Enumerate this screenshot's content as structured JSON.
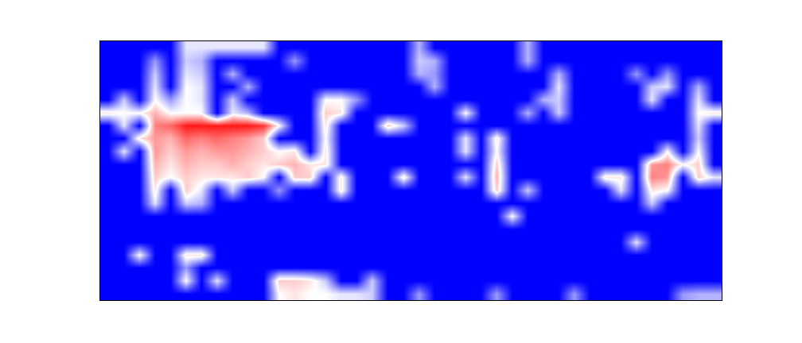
{
  "chart_data": {
    "type": "heatmap",
    "tick_labels": false,
    "colors": [
      "#0000ff",
      "#ffffff",
      "#ff0000"
    ],
    "color_range": [
      0,
      1
    ],
    "cells": [
      [
        0,
        0,
        0,
        0,
        0,
        0.45,
        0.45,
        0.45,
        0.45,
        0.45,
        0.45,
        0,
        0,
        0,
        0,
        0,
        0,
        0,
        0,
        0,
        0.35,
        0,
        0,
        0,
        0,
        0,
        0,
        0.35,
        0,
        0,
        0,
        0,
        0,
        0,
        0,
        0,
        0,
        0,
        0,
        0
      ],
      [
        0,
        0,
        0,
        0.3,
        0,
        0.4,
        0.35,
        0,
        0,
        0,
        0,
        0,
        0.3,
        0,
        0,
        0,
        0,
        0,
        0,
        0,
        0.4,
        0.35,
        0,
        0,
        0,
        0,
        0,
        0.35,
        0,
        0,
        0,
        0,
        0,
        0,
        0,
        0,
        0,
        0,
        0,
        0
      ],
      [
        0,
        0,
        0,
        0.4,
        0,
        0.45,
        0.4,
        0,
        0.35,
        0,
        0,
        0,
        0,
        0,
        0,
        0,
        0,
        0,
        0,
        0,
        0.35,
        0.3,
        0,
        0,
        0,
        0,
        0,
        0,
        0,
        0.35,
        0,
        0,
        0,
        0,
        0.3,
        0,
        0.3,
        0,
        0,
        0
      ],
      [
        0,
        0,
        0,
        0.45,
        0,
        0.5,
        0.45,
        0,
        0,
        0.35,
        0,
        0,
        0,
        0,
        0,
        0,
        0,
        0,
        0,
        0,
        0,
        0.35,
        0,
        0,
        0,
        0,
        0,
        0,
        0,
        0.45,
        0,
        0,
        0,
        0,
        0,
        0.4,
        0.45,
        0,
        0.35,
        0
      ],
      [
        0,
        0.4,
        0,
        0.5,
        0.3,
        0.5,
        0.45,
        0,
        0.4,
        0,
        0,
        0,
        0,
        0,
        0.5,
        0.5,
        0.3,
        0,
        0,
        0,
        0,
        0,
        0,
        0,
        0,
        0,
        0,
        0,
        0.35,
        0.4,
        0,
        0,
        0,
        0,
        0,
        0.45,
        0,
        0,
        0.45,
        0
      ],
      [
        0.55,
        0.5,
        0.5,
        0.65,
        0.5,
        0.5,
        0.5,
        0,
        0.45,
        0.35,
        0,
        0,
        0,
        0,
        0.6,
        0.55,
        0,
        0,
        0,
        0,
        0,
        0,
        0,
        0.5,
        0,
        0,
        0,
        0.35,
        0,
        0.4,
        0,
        0,
        0,
        0,
        0,
        0,
        0,
        0,
        0.5,
        0.55
      ],
      [
        0,
        0.45,
        0,
        0.75,
        0.8,
        0.95,
        0.95,
        0.95,
        0.95,
        0.95,
        0.9,
        0.5,
        0,
        0,
        0.55,
        0,
        0,
        0,
        0.6,
        0.4,
        0,
        0,
        0,
        0,
        0,
        0,
        0,
        0,
        0,
        0,
        0,
        0,
        0,
        0,
        0,
        0,
        0,
        0,
        0.45,
        0
      ],
      [
        0,
        0,
        0.55,
        0.7,
        0.65,
        0.8,
        0.75,
        0.8,
        0.75,
        0.7,
        0.6,
        0,
        0,
        0,
        0.5,
        0,
        0,
        0,
        0,
        0,
        0,
        0,
        0,
        0.45,
        0,
        0.55,
        0,
        0,
        0,
        0,
        0,
        0,
        0,
        0,
        0,
        0,
        0,
        0,
        0.4,
        0
      ],
      [
        0,
        0.45,
        0,
        0.7,
        0.6,
        0.7,
        0.65,
        0.7,
        0.7,
        0.65,
        0.6,
        0.5,
        0.55,
        0,
        0.55,
        0,
        0,
        0,
        0,
        0,
        0,
        0,
        0,
        0.45,
        0,
        0.5,
        0,
        0,
        0,
        0,
        0,
        0,
        0,
        0,
        0,
        0,
        0.5,
        0,
        0.5,
        0
      ],
      [
        0,
        0,
        0,
        0.65,
        0.55,
        0.65,
        0.6,
        0.6,
        0.65,
        0.6,
        0.55,
        0.6,
        0.65,
        0.55,
        0.55,
        0,
        0,
        0,
        0,
        0,
        0,
        0,
        0,
        0,
        0,
        0.6,
        0,
        0,
        0,
        0,
        0,
        0,
        0,
        0,
        0,
        0.7,
        0.75,
        0.5,
        0.6,
        0
      ],
      [
        0,
        0,
        0,
        0.6,
        0.5,
        0.6,
        0.55,
        0.55,
        0.55,
        0.6,
        0.5,
        0,
        0.6,
        0.6,
        0,
        0.55,
        0,
        0,
        0,
        0.55,
        0,
        0,
        0,
        0.45,
        0,
        0.65,
        0,
        0,
        0,
        0,
        0,
        0,
        0.55,
        0.55,
        0,
        0.75,
        0.7,
        0,
        0.6,
        0.45
      ],
      [
        0,
        0,
        0,
        0.55,
        0,
        0.6,
        0.45,
        0,
        0.4,
        0,
        0,
        0.3,
        0,
        0,
        0,
        0.55,
        0,
        0,
        0,
        0,
        0,
        0,
        0,
        0,
        0,
        0.6,
        0,
        0.4,
        0,
        0,
        0,
        0,
        0,
        0.45,
        0,
        0.55,
        0.5,
        0,
        0,
        0
      ],
      [
        0,
        0,
        0,
        0.45,
        0,
        0.4,
        0.35,
        0,
        0,
        0,
        0,
        0,
        0,
        0,
        0,
        0,
        0,
        0,
        0,
        0,
        0,
        0,
        0,
        0,
        0,
        0,
        0,
        0,
        0,
        0,
        0,
        0,
        0,
        0,
        0,
        0.4,
        0,
        0,
        0,
        0
      ],
      [
        0,
        0,
        0,
        0,
        0,
        0,
        0,
        0,
        0,
        0,
        0,
        0,
        0,
        0,
        0,
        0,
        0,
        0,
        0,
        0,
        0,
        0,
        0,
        0,
        0,
        0,
        0.5,
        0,
        0,
        0,
        0,
        0,
        0,
        0,
        0,
        0,
        0,
        0,
        0,
        0
      ],
      [
        0,
        0,
        0,
        0,
        0,
        0,
        0,
        0,
        0,
        0,
        0,
        0,
        0,
        0,
        0,
        0,
        0,
        0,
        0,
        0,
        0,
        0,
        0,
        0,
        0,
        0,
        0,
        0,
        0,
        0,
        0,
        0,
        0,
        0,
        0,
        0,
        0,
        0,
        0,
        0
      ],
      [
        0,
        0,
        0,
        0,
        0,
        0,
        0,
        0,
        0,
        0,
        0,
        0,
        0,
        0,
        0,
        0,
        0,
        0,
        0,
        0,
        0,
        0,
        0,
        0,
        0,
        0,
        0,
        0,
        0,
        0,
        0,
        0,
        0,
        0,
        0.45,
        0,
        0,
        0,
        0,
        0
      ],
      [
        0,
        0,
        0.5,
        0,
        0,
        0.55,
        0.55,
        0,
        0,
        0,
        0,
        0,
        0,
        0,
        0,
        0,
        0,
        0,
        0,
        0,
        0,
        0,
        0,
        0,
        0,
        0,
        0,
        0,
        0,
        0,
        0,
        0,
        0,
        0,
        0,
        0,
        0,
        0,
        0,
        0
      ],
      [
        0,
        0,
        0,
        0,
        0,
        0.3,
        0,
        0,
        0,
        0,
        0,
        0,
        0,
        0,
        0,
        0,
        0,
        0,
        0,
        0,
        0,
        0,
        0,
        0,
        0,
        0,
        0,
        0,
        0,
        0,
        0,
        0,
        0,
        0,
        0,
        0,
        0,
        0,
        0,
        0
      ],
      [
        0,
        0,
        0,
        0,
        0,
        0.5,
        0,
        0.45,
        0,
        0,
        0,
        0.6,
        0.6,
        0.55,
        0.4,
        0,
        0,
        0.4,
        0,
        0,
        0,
        0,
        0,
        0,
        0,
        0,
        0,
        0,
        0,
        0,
        0,
        0,
        0,
        0,
        0,
        0,
        0,
        0,
        0,
        0
      ],
      [
        0,
        0,
        0,
        0,
        0,
        0,
        0,
        0,
        0,
        0,
        0,
        0.5,
        0.55,
        0.5,
        0.5,
        0.45,
        0.45,
        0.4,
        0,
        0,
        0.3,
        0,
        0,
        0,
        0,
        0.3,
        0,
        0,
        0,
        0,
        0.3,
        0,
        0,
        0,
        0,
        0,
        0,
        0.3,
        0.35,
        0.35
      ]
    ]
  }
}
